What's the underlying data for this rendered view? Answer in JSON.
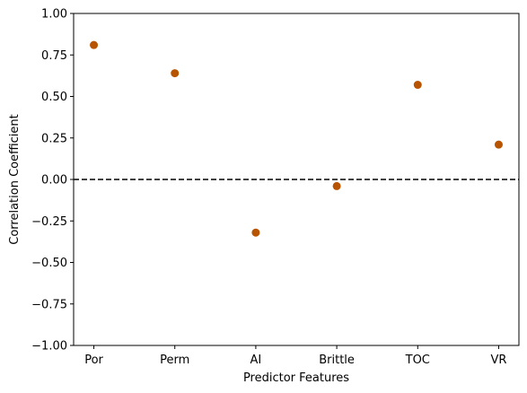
{
  "chart_data": {
    "type": "scatter",
    "title": "",
    "xlabel": "Predictor Features",
    "ylabel": "Correlation Coefficient",
    "categories": [
      "Por",
      "Perm",
      "AI",
      "Brittle",
      "TOC",
      "VR"
    ],
    "values": [
      0.81,
      0.64,
      -0.32,
      -0.04,
      0.57,
      0.21
    ],
    "ylim": [
      -1.0,
      1.0
    ],
    "yticks": [
      -1.0,
      -0.75,
      -0.5,
      -0.25,
      0.0,
      0.25,
      0.5,
      0.75,
      1.0
    ],
    "ytick_labels": [
      "−1.00",
      "−0.75",
      "−0.50",
      "−0.25",
      "0.00",
      "0.25",
      "0.50",
      "0.75",
      "1.00"
    ],
    "reference_line": {
      "y": 0.0,
      "style": "dashed",
      "color": "#000000"
    },
    "marker_color": "#b85400",
    "grid": false,
    "legend": "none"
  }
}
